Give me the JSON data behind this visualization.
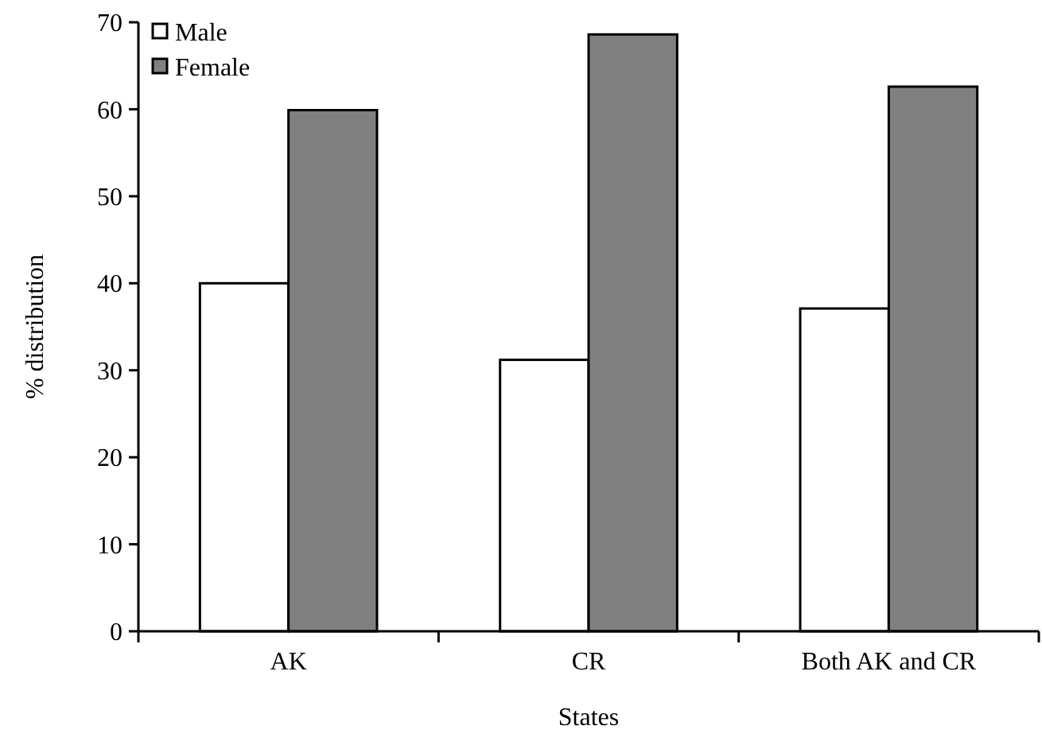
{
  "chart_data": {
    "type": "bar",
    "xlabel": "States",
    "ylabel": "% distribution",
    "categories": [
      "AK",
      "CR",
      "Both AK and CR"
    ],
    "series": [
      {
        "name": "Male",
        "color": "#ffffff",
        "values": [
          40.0,
          31.2,
          37.1
        ]
      },
      {
        "name": "Female",
        "color": "#808080",
        "values": [
          59.9,
          68.6,
          62.6
        ]
      }
    ],
    "ylim": [
      0,
      70
    ],
    "yticks": [
      0,
      10,
      20,
      30,
      40,
      50,
      60,
      70
    ],
    "grid": false,
    "legend": "top left"
  }
}
